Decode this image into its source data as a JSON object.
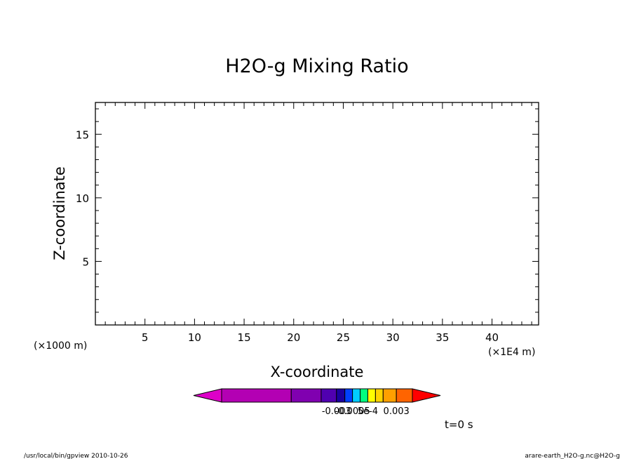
{
  "chart_data": {
    "type": "heatmap",
    "title": "H2O-g Mixing Ratio",
    "xlabel": "X-coordinate",
    "ylabel": "Z-coordinate",
    "x_unit_label": "(×1E4 m)",
    "y_unit_label": "(×1000 m)",
    "xlim": [
      0,
      44.7
    ],
    "ylim": [
      0,
      17.5
    ],
    "x_major_ticks": [
      5,
      10,
      15,
      20,
      25,
      30,
      35,
      40
    ],
    "x_tick_labels": [
      "5",
      "10",
      "15",
      "20",
      "25",
      "30",
      "35",
      "40"
    ],
    "x_minor_step": 1,
    "y_major_ticks": [
      5,
      10,
      15
    ],
    "y_tick_labels": [
      "5",
      "10",
      "15"
    ],
    "y_minor_step": 1,
    "values": [],
    "grid": false,
    "time_label": "t=0 s",
    "colorbar": {
      "colors": [
        "#dd00c8",
        "#b300b3",
        "#8000b0",
        "#5000b0",
        "#1a00a0",
        "#0040ff",
        "#00ccff",
        "#00ff80",
        "#ffff00",
        "#ffd400",
        "#ffa000",
        "#ff6400",
        "#ff0000"
      ],
      "segment_weights": [
        1,
        1,
        1,
        1,
        1,
        1,
        1,
        1,
        1,
        1,
        1,
        1,
        1
      ],
      "segment_spans": [
        0,
        10,
        4.3,
        2.2,
        1.2,
        1.1,
        1.1,
        1.1,
        1.1,
        1.1,
        1.9,
        2.3,
        0
      ],
      "tick_labels": [
        {
          "text": "-0.003",
          "at_boundary": 3
        },
        {
          "text": "-0.0005",
          "at_boundary": 5
        },
        {
          "text": "5e-4",
          "at_boundary": 7
        },
        {
          "text": "0.003",
          "at_boundary": 10
        }
      ]
    }
  },
  "footer": {
    "left": "/usr/local/bin/gpview  2010-10-26",
    "right": "arare-earth_H2O-g.nc@H2O-g"
  }
}
